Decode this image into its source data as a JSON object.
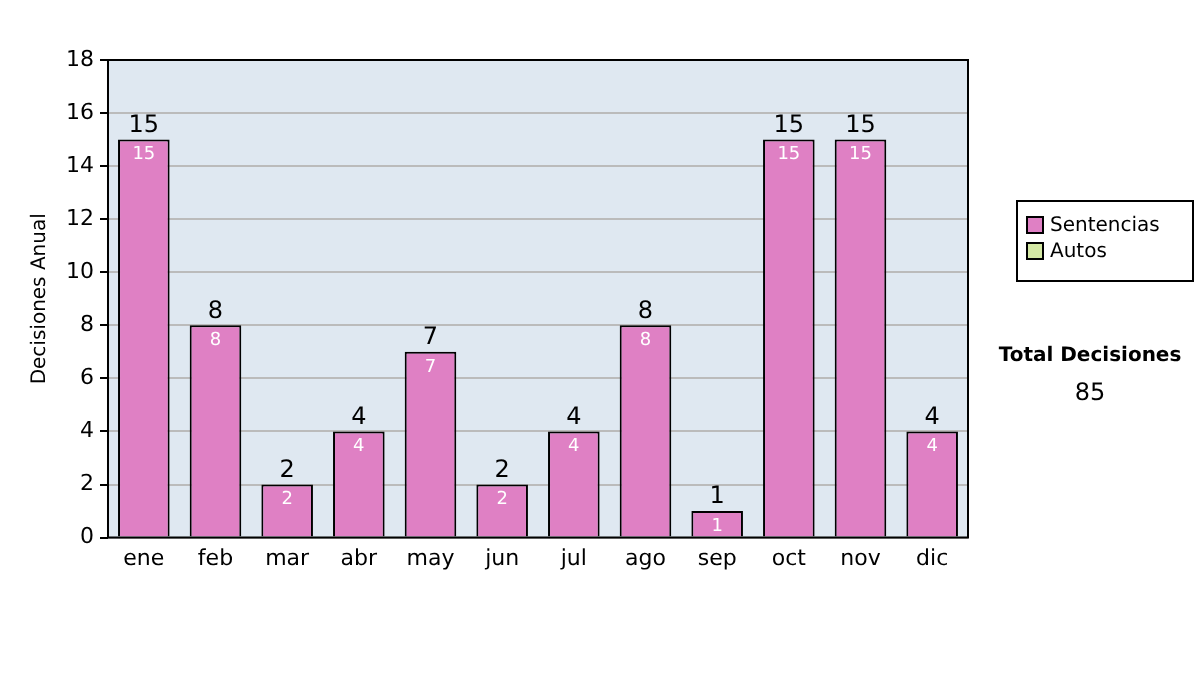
{
  "chart_data": {
    "type": "bar",
    "ylabel": "Decisiones Anual",
    "categories": [
      "ene",
      "feb",
      "mar",
      "abr",
      "may",
      "jun",
      "jul",
      "ago",
      "sep",
      "oct",
      "nov",
      "dic"
    ],
    "series": [
      {
        "name": "Sentencias",
        "color": "#df80c4",
        "values": [
          15,
          8,
          2,
          4,
          7,
          2,
          4,
          8,
          1,
          15,
          15,
          4
        ],
        "value_labels": [
          "15",
          "8",
          "2",
          "4",
          "7",
          "2",
          "4",
          "8",
          "1",
          "15",
          "15",
          "4"
        ]
      },
      {
        "name": "Autos",
        "color": "#d4e8a4",
        "values": [
          0,
          0,
          0,
          0,
          0,
          0,
          0,
          0,
          0,
          0,
          0,
          0
        ]
      }
    ],
    "stacked": true,
    "totals": [
      "15",
      "8",
      "2",
      "4",
      "7",
      "2",
      "4",
      "8",
      "1",
      "15",
      "15",
      "4"
    ],
    "ylim": [
      0,
      18
    ],
    "yticks": [
      0,
      2,
      4,
      6,
      8,
      10,
      12,
      14,
      16,
      18
    ],
    "grid": "y",
    "legend": "right",
    "annotations": [
      "Total Decisiones",
      "85"
    ]
  }
}
